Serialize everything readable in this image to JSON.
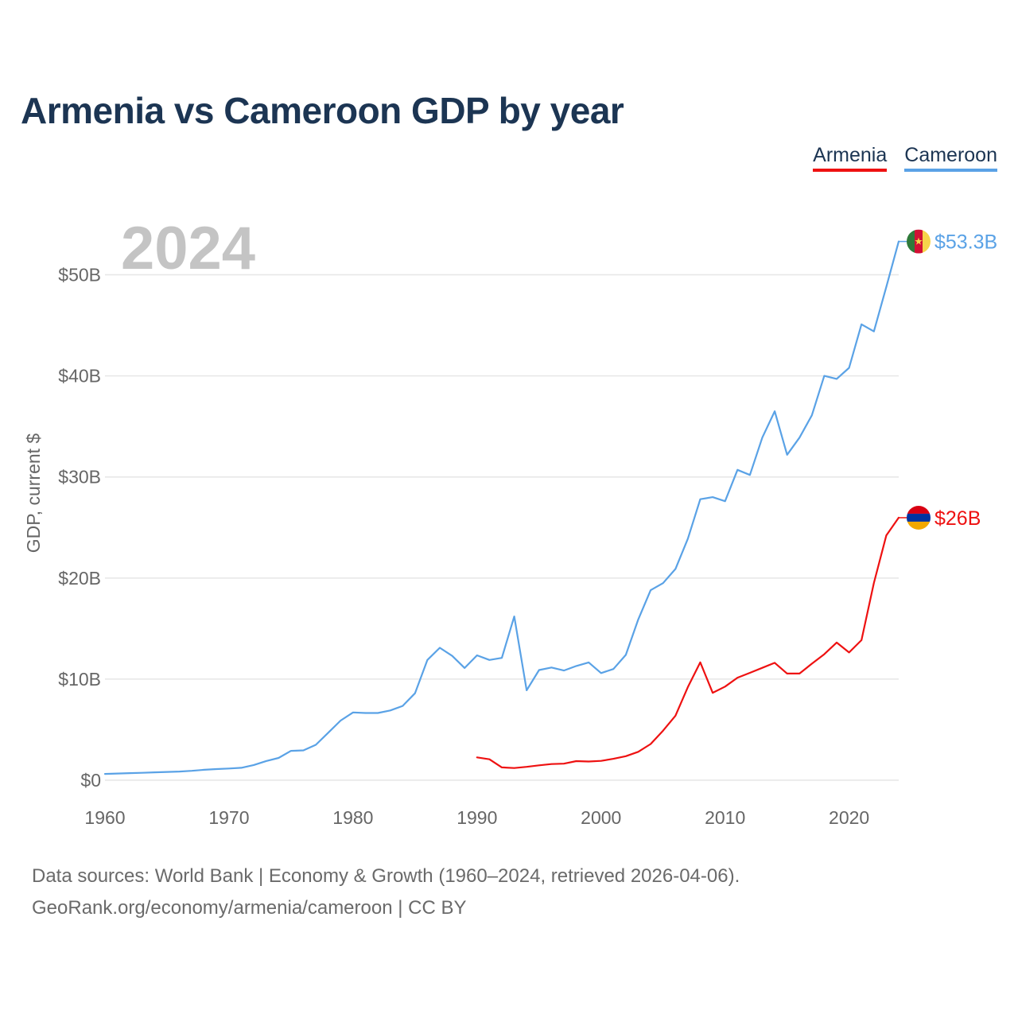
{
  "chart_data": {
    "type": "line",
    "title": "Armenia vs Cameroon GDP by year",
    "ylabel": "GDP, current $",
    "xlabel": "",
    "current_year_label": "2024",
    "xlim": [
      1960,
      2024
    ],
    "ylim": [
      0,
      55
    ],
    "x_ticks": [
      1960,
      1970,
      1980,
      1990,
      2000,
      2010,
      2020
    ],
    "x_tick_labels": [
      "1960",
      "1970",
      "1980",
      "1990",
      "2000",
      "2010",
      "2020"
    ],
    "y_ticks": [
      0,
      10,
      20,
      30,
      40,
      50
    ],
    "y_tick_labels": [
      "$0",
      "$10B",
      "$20B",
      "$30B",
      "$40B",
      "$50B"
    ],
    "grid": true,
    "legend": [
      "Armenia",
      "Cameroon"
    ],
    "series": [
      {
        "name": "Cameroon",
        "color": "#5aa2e6",
        "end_label": "$53.3B",
        "flag_icon": "cameroon-flag-icon",
        "x": [
          1960,
          1961,
          1962,
          1963,
          1964,
          1965,
          1966,
          1967,
          1968,
          1969,
          1970,
          1971,
          1972,
          1973,
          1974,
          1975,
          1976,
          1977,
          1978,
          1979,
          1980,
          1981,
          1982,
          1983,
          1984,
          1985,
          1986,
          1987,
          1988,
          1989,
          1990,
          1991,
          1992,
          1993,
          1994,
          1995,
          1996,
          1997,
          1998,
          1999,
          2000,
          2001,
          2002,
          2003,
          2004,
          2005,
          2006,
          2007,
          2008,
          2009,
          2010,
          2011,
          2012,
          2013,
          2014,
          2015,
          2016,
          2017,
          2018,
          2019,
          2020,
          2021,
          2022,
          2023,
          2024
        ],
        "values": [
          0.62,
          0.66,
          0.7,
          0.73,
          0.78,
          0.82,
          0.86,
          0.93,
          1.03,
          1.1,
          1.16,
          1.23,
          1.5,
          1.9,
          2.2,
          2.9,
          2.95,
          3.5,
          4.7,
          5.9,
          6.7,
          6.65,
          6.65,
          6.9,
          7.35,
          8.6,
          11.9,
          13.1,
          12.3,
          11.1,
          12.35,
          11.9,
          12.1,
          16.2,
          8.9,
          10.9,
          11.15,
          10.85,
          11.3,
          11.65,
          10.6,
          11.0,
          12.4,
          15.9,
          18.8,
          19.5,
          20.9,
          23.9,
          27.8,
          28.0,
          27.6,
          30.7,
          30.2,
          33.9,
          36.5,
          32.2,
          33.9,
          36.1,
          40.0,
          39.7,
          40.8,
          45.1,
          44.4,
          48.8,
          53.3
        ]
      },
      {
        "name": "Armenia",
        "color": "#ee1111",
        "end_label": "$26B",
        "flag_icon": "armenia-flag-icon",
        "x": [
          1990,
          1991,
          1992,
          1993,
          1994,
          1995,
          1996,
          1997,
          1998,
          1999,
          2000,
          2001,
          2002,
          2003,
          2004,
          2005,
          2006,
          2007,
          2008,
          2009,
          2010,
          2011,
          2012,
          2013,
          2014,
          2015,
          2016,
          2017,
          2018,
          2019,
          2020,
          2021,
          2022,
          2023,
          2024
        ],
        "values": [
          2.26,
          2.07,
          1.27,
          1.2,
          1.32,
          1.47,
          1.6,
          1.64,
          1.89,
          1.85,
          1.91,
          2.12,
          2.38,
          2.81,
          3.58,
          4.9,
          6.38,
          9.21,
          11.66,
          8.65,
          9.26,
          10.14,
          10.62,
          11.12,
          11.61,
          10.55,
          10.55,
          11.53,
          12.46,
          13.62,
          12.64,
          13.86,
          19.51,
          24.21,
          25.97
        ]
      }
    ]
  },
  "legend_items": {
    "armenia": "Armenia",
    "cameroon": "Cameroon"
  },
  "source": {
    "line1": "Data sources: World Bank | Economy & Growth (1960–2024, retrieved 2026-04-06).",
    "line2": "GeoRank.org/economy/armenia/cameroon | CC BY"
  }
}
